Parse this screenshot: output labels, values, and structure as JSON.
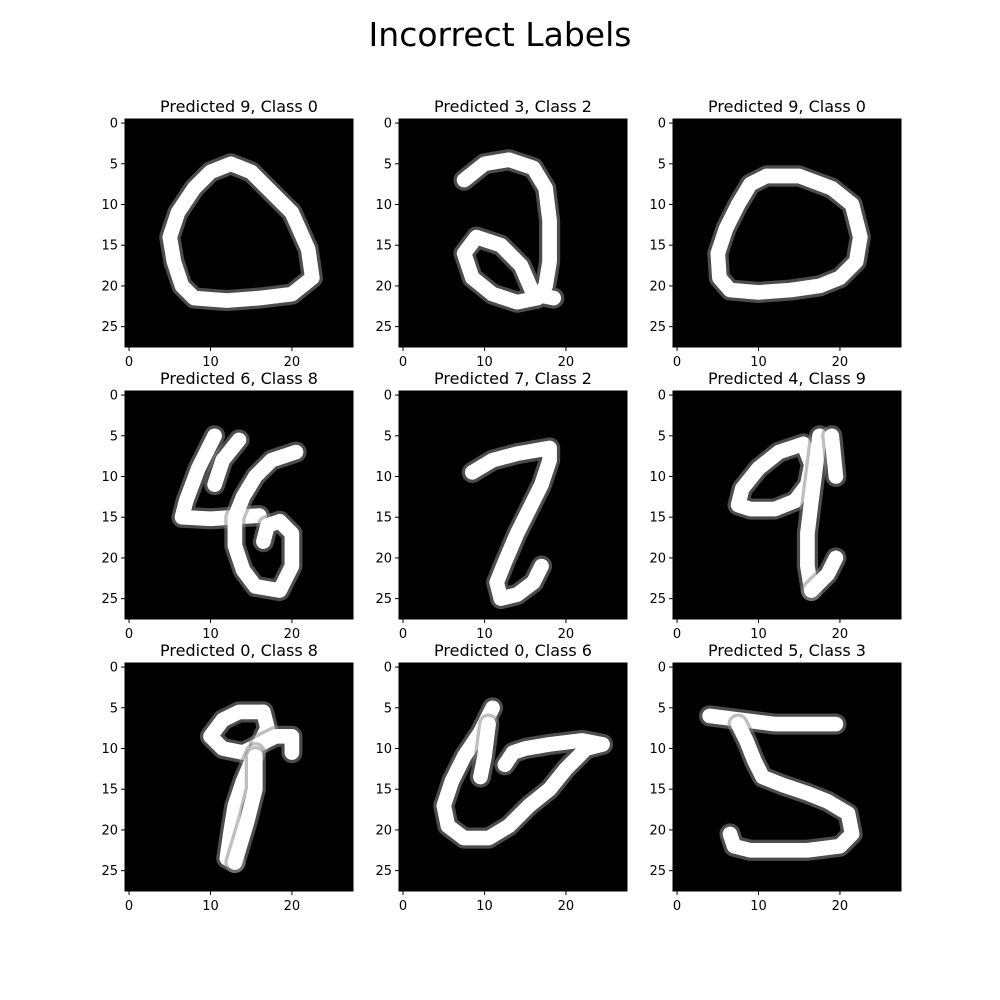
{
  "figure": {
    "title": "Incorrect Labels",
    "background": "#ffffff",
    "image_background": "#000000",
    "stroke_color": "#ffffff",
    "colormap": "gray"
  },
  "chart_data": [
    {
      "type": "heatmap",
      "title": "Predicted 9, Class 0",
      "predicted": 9,
      "class": 0,
      "image_size": [
        28,
        28
      ],
      "x_ticks": [
        0,
        10,
        20
      ],
      "y_ticks": [
        0,
        5,
        10,
        15,
        20,
        25
      ],
      "strokes": [
        [
          [
            12.5,
            5
          ],
          [
            10,
            6
          ],
          [
            8,
            8
          ],
          [
            6,
            11
          ],
          [
            5,
            14
          ],
          [
            5.5,
            17
          ],
          [
            6.5,
            20
          ],
          [
            8,
            21.5
          ],
          [
            12,
            21.8
          ],
          [
            16,
            21.5
          ],
          [
            20,
            21
          ],
          [
            22.5,
            19
          ],
          [
            22,
            15.5
          ],
          [
            20,
            11
          ],
          [
            17,
            8
          ],
          [
            15,
            6
          ],
          [
            12.5,
            5
          ]
        ]
      ]
    },
    {
      "type": "heatmap",
      "title": "Predicted 3, Class 2",
      "predicted": 3,
      "class": 2,
      "image_size": [
        28,
        28
      ],
      "x_ticks": [
        0,
        10,
        20
      ],
      "y_ticks": [
        0,
        5,
        10,
        15,
        20,
        25
      ],
      "strokes": [
        [
          [
            7.5,
            7
          ],
          [
            10,
            5
          ],
          [
            13,
            4.5
          ],
          [
            16,
            5.5
          ],
          [
            17.5,
            8
          ],
          [
            18,
            12
          ],
          [
            18,
            17
          ],
          [
            17.5,
            20
          ],
          [
            16.5,
            21.5
          ],
          [
            14,
            22
          ],
          [
            11,
            21
          ],
          [
            8.5,
            19
          ],
          [
            7.5,
            16
          ],
          [
            9,
            14
          ],
          [
            12,
            15
          ],
          [
            14.5,
            17.5
          ],
          [
            16,
            21
          ],
          [
            18.5,
            21.5
          ]
        ]
      ]
    },
    {
      "type": "heatmap",
      "title": "Predicted 9, Class 0",
      "predicted": 9,
      "class": 0,
      "image_size": [
        28,
        28
      ],
      "x_ticks": [
        0,
        10,
        20
      ],
      "y_ticks": [
        0,
        5,
        10,
        15,
        20,
        25
      ],
      "strokes": [
        [
          [
            11,
            6.5
          ],
          [
            9,
            7.5
          ],
          [
            7.5,
            10
          ],
          [
            6,
            13
          ],
          [
            5,
            16
          ],
          [
            5.2,
            19
          ],
          [
            6.5,
            20.5
          ],
          [
            10,
            20.8
          ],
          [
            14,
            20.5
          ],
          [
            17.5,
            20
          ],
          [
            20,
            19
          ],
          [
            22,
            17
          ],
          [
            22.5,
            14
          ],
          [
            21.5,
            10
          ],
          [
            19,
            8
          ],
          [
            15,
            6.5
          ],
          [
            11,
            6.5
          ]
        ]
      ]
    },
    {
      "type": "heatmap",
      "title": "Predicted 6, Class 8",
      "predicted": 6,
      "class": 8,
      "image_size": [
        28,
        28
      ],
      "x_ticks": [
        0,
        10,
        20
      ],
      "y_ticks": [
        0,
        5,
        10,
        15,
        20,
        25
      ],
      "strokes": [
        [
          [
            10.5,
            5
          ],
          [
            8.5,
            9
          ],
          [
            7,
            13
          ],
          [
            6.5,
            15
          ],
          [
            10,
            15.2
          ],
          [
            13,
            15
          ],
          [
            16,
            14.8
          ]
        ],
        [
          [
            13.5,
            5.5
          ],
          [
            11.5,
            8
          ],
          [
            10.5,
            11
          ]
        ],
        [
          [
            20.5,
            7
          ],
          [
            17.5,
            8
          ],
          [
            15.5,
            10
          ],
          [
            14,
            12.5
          ],
          [
            13,
            15
          ],
          [
            13,
            18.5
          ],
          [
            14,
            21.5
          ],
          [
            15.5,
            23.5
          ],
          [
            18.5,
            24
          ],
          [
            20,
            21
          ],
          [
            20,
            17
          ],
          [
            18.5,
            15.5
          ],
          [
            17,
            16
          ],
          [
            16.5,
            18
          ]
        ]
      ]
    },
    {
      "type": "heatmap",
      "title": "Predicted 7, Class 2",
      "predicted": 7,
      "class": 2,
      "image_size": [
        28,
        28
      ],
      "x_ticks": [
        0,
        10,
        20
      ],
      "y_ticks": [
        0,
        5,
        10,
        15,
        20,
        25
      ],
      "strokes": [
        [
          [
            8.5,
            9.5
          ],
          [
            11,
            8
          ],
          [
            14,
            7.2
          ],
          [
            18,
            6.5
          ],
          [
            18,
            8
          ],
          [
            17,
            11
          ],
          [
            15.5,
            14
          ],
          [
            14,
            17
          ],
          [
            12.5,
            20.5
          ],
          [
            11.5,
            23
          ],
          [
            12,
            25
          ],
          [
            14,
            24.5
          ],
          [
            16,
            23
          ],
          [
            17,
            21
          ]
        ]
      ]
    },
    {
      "type": "heatmap",
      "title": "Predicted 4, Class 9",
      "predicted": 4,
      "class": 9,
      "image_size": [
        28,
        28
      ],
      "x_ticks": [
        0,
        10,
        20
      ],
      "y_ticks": [
        0,
        5,
        10,
        15,
        20,
        25
      ],
      "strokes": [
        [
          [
            15.5,
            6
          ],
          [
            12.5,
            7
          ],
          [
            10,
            9
          ],
          [
            8,
            11.5
          ],
          [
            7.5,
            13.5
          ],
          [
            9,
            14
          ],
          [
            12,
            14
          ],
          [
            14.5,
            13
          ],
          [
            16,
            11
          ],
          [
            16.5,
            8.5
          ],
          [
            15.5,
            6
          ]
        ],
        [
          [
            17.5,
            5
          ],
          [
            17,
            9
          ],
          [
            16.5,
            13
          ],
          [
            16,
            17
          ],
          [
            16,
            21
          ],
          [
            16.5,
            24
          ]
        ],
        [
          [
            19,
            5
          ],
          [
            19.5,
            10
          ]
        ],
        [
          [
            16.5,
            24
          ],
          [
            18.5,
            22
          ],
          [
            19.5,
            20
          ]
        ]
      ]
    },
    {
      "type": "heatmap",
      "title": "Predicted 0, Class 8",
      "predicted": 0,
      "class": 8,
      "image_size": [
        28,
        28
      ],
      "x_ticks": [
        0,
        10,
        20
      ],
      "y_ticks": [
        0,
        5,
        10,
        15,
        20,
        25
      ],
      "strokes": [
        [
          [
            16.5,
            5.5
          ],
          [
            13.5,
            5.5
          ],
          [
            11.5,
            6.5
          ],
          [
            10,
            8.5
          ],
          [
            11.5,
            10
          ],
          [
            14,
            10.5
          ],
          [
            16,
            9.5
          ],
          [
            17,
            7.5
          ],
          [
            16.5,
            5.5
          ]
        ],
        [
          [
            16,
            9.5
          ],
          [
            18,
            8.5
          ],
          [
            20,
            8.5
          ],
          [
            20,
            10.5
          ]
        ],
        [
          [
            15.5,
            10.5
          ],
          [
            14,
            14
          ],
          [
            13,
            17
          ],
          [
            12.5,
            20
          ],
          [
            12,
            23.5
          ],
          [
            13,
            24
          ]
        ],
        [
          [
            15.5,
            11
          ],
          [
            15.5,
            15
          ],
          [
            14.5,
            19
          ],
          [
            13,
            24
          ]
        ]
      ]
    },
    {
      "type": "heatmap",
      "title": "Predicted 0, Class 6",
      "predicted": 0,
      "class": 6,
      "image_size": [
        28,
        28
      ],
      "x_ticks": [
        0,
        10,
        20
      ],
      "y_ticks": [
        0,
        5,
        10,
        15,
        20,
        25
      ],
      "strokes": [
        [
          [
            11,
            5
          ],
          [
            9.5,
            8
          ],
          [
            7.5,
            11
          ],
          [
            6,
            14
          ],
          [
            5,
            17
          ],
          [
            5.5,
            19.5
          ],
          [
            7.5,
            21
          ],
          [
            10.5,
            21
          ],
          [
            13,
            19.5
          ],
          [
            15.5,
            17
          ],
          [
            18,
            15
          ],
          [
            20,
            12.5
          ],
          [
            22.5,
            10
          ],
          [
            24.5,
            9.5
          ],
          [
            22,
            9
          ],
          [
            18,
            9.5
          ],
          [
            15,
            10
          ],
          [
            13.5,
            10.5
          ],
          [
            12.5,
            12
          ]
        ],
        [
          [
            10.5,
            7
          ],
          [
            10,
            11
          ],
          [
            9.5,
            13.5
          ]
        ]
      ]
    },
    {
      "type": "heatmap",
      "title": "Predicted 5, Class 3",
      "predicted": 5,
      "class": 3,
      "image_size": [
        28,
        28
      ],
      "x_ticks": [
        0,
        10,
        20
      ],
      "y_ticks": [
        0,
        5,
        10,
        15,
        20,
        25
      ],
      "strokes": [
        [
          [
            4,
            6
          ],
          [
            8,
            6.5
          ],
          [
            12,
            7
          ],
          [
            16,
            7
          ],
          [
            19.5,
            7
          ]
        ],
        [
          [
            7.5,
            7
          ],
          [
            8.5,
            9
          ],
          [
            9.5,
            11.5
          ],
          [
            10.5,
            13.5
          ],
          [
            13,
            14.5
          ],
          [
            16,
            15.5
          ],
          [
            18.5,
            16.5
          ],
          [
            21,
            18
          ],
          [
            21.5,
            20.5
          ],
          [
            20,
            22
          ],
          [
            16,
            22.5
          ],
          [
            12,
            22.5
          ],
          [
            9,
            22.5
          ],
          [
            7,
            22
          ],
          [
            6.5,
            20.5
          ]
        ]
      ]
    }
  ]
}
